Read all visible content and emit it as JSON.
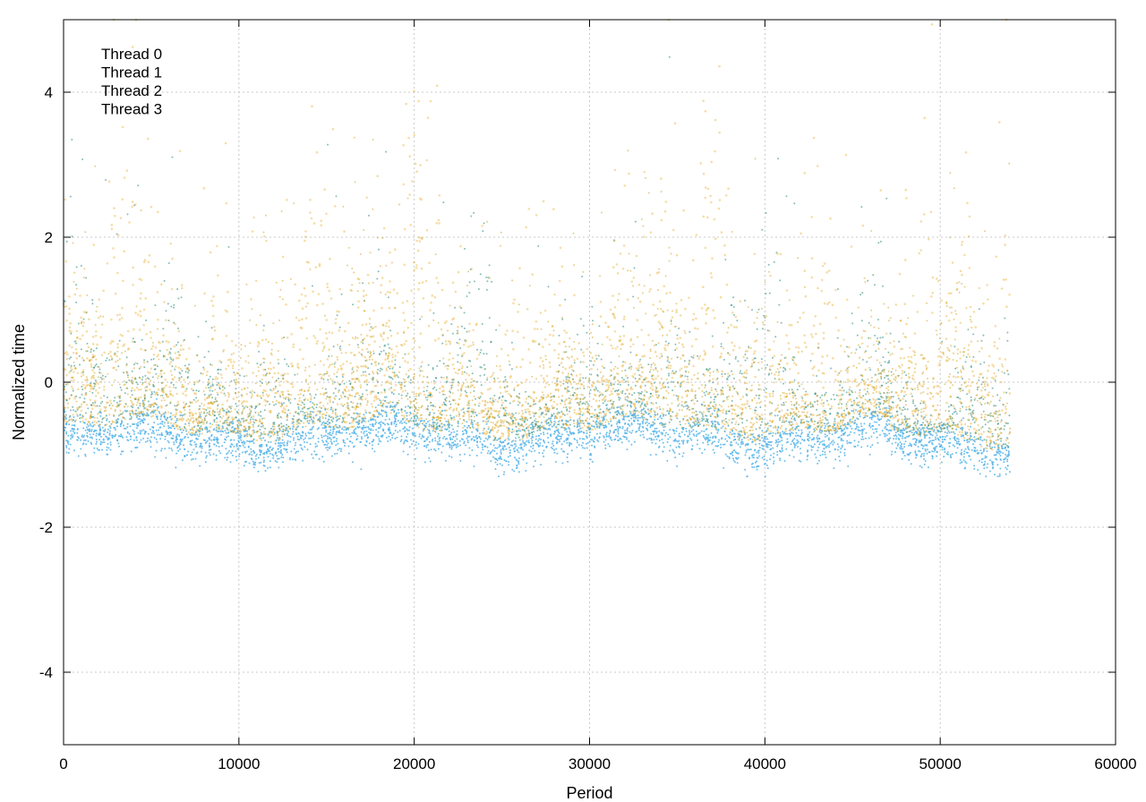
{
  "chart_data": {
    "type": "scatter",
    "title": "",
    "xlabel": "Period",
    "ylabel": "Normalized time",
    "xlim": [
      0,
      60000
    ],
    "ylim": [
      -5,
      5
    ],
    "x_ticks": [
      0,
      10000,
      20000,
      30000,
      40000,
      50000,
      60000
    ],
    "y_ticks": [
      -4,
      -2,
      0,
      2,
      4
    ],
    "x_tick_labels": [
      "0",
      "10000",
      "20000",
      "30000",
      "40000",
      "50000",
      "60000"
    ],
    "y_tick_labels": [
      "-4",
      "-2",
      "0",
      "2",
      "4"
    ],
    "grid": true,
    "legend_position": "top-left",
    "x_range_of_data": [
      0,
      54000
    ],
    "series": [
      {
        "name": "Thread 0",
        "color": "#0f7d6e",
        "typical_mean": 0.1,
        "spread": 0.75,
        "lower_bound": -1.2,
        "upper_bound": 4.8
      },
      {
        "name": "Thread 1",
        "color": "#e69f00",
        "typical_mean": 0.6,
        "spread": 1.0,
        "lower_bound": -1.1,
        "upper_bound": 5.0
      },
      {
        "name": "Thread 2",
        "color": "#d4a017",
        "typical_mean": 0.2,
        "spread": 0.8,
        "lower_bound": -1.1,
        "upper_bound": 4.9
      },
      {
        "name": "Thread 3",
        "color": "#56b4e9",
        "typical_mean": -0.75,
        "spread": 0.15,
        "lower_bound": -1.3,
        "upper_bound": 0.0
      }
    ]
  }
}
